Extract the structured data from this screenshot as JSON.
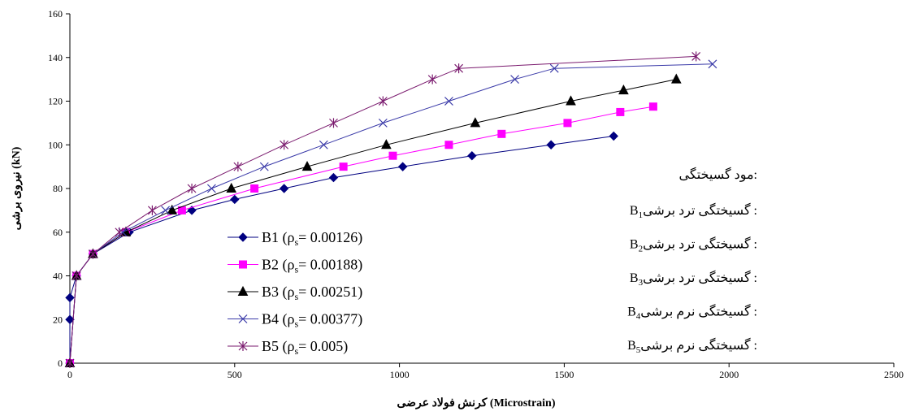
{
  "chart_data": {
    "type": "line",
    "xlabel": "کرنش فولاد عرضی (Microstrain)",
    "ylabel": "نیروی برشی (kN)",
    "xlim": [
      0,
      2500
    ],
    "ylim": [
      0,
      160
    ],
    "xticks": [
      0,
      500,
      1000,
      1500,
      2000,
      2500
    ],
    "yticks": [
      0,
      20,
      40,
      60,
      80,
      100,
      120,
      140,
      160
    ],
    "grid": false,
    "legend_position": "center-left",
    "series": [
      {
        "name": "B1",
        "rho": "0.00126",
        "color": "#000080",
        "marker": "diamond",
        "points": [
          [
            0,
            0
          ],
          [
            0,
            20
          ],
          [
            0,
            30
          ],
          [
            20,
            40
          ],
          [
            70,
            50
          ],
          [
            180,
            60
          ],
          [
            370,
            70
          ],
          [
            500,
            75
          ],
          [
            650,
            80
          ],
          [
            800,
            85
          ],
          [
            1010,
            90
          ],
          [
            1220,
            95
          ],
          [
            1460,
            100
          ],
          [
            1650,
            104
          ]
        ]
      },
      {
        "name": "B2",
        "rho": "0.00188",
        "color": "#ff00ff",
        "marker": "square",
        "points": [
          [
            0,
            0
          ],
          [
            20,
            40
          ],
          [
            70,
            50
          ],
          [
            170,
            60
          ],
          [
            340,
            70
          ],
          [
            560,
            80
          ],
          [
            830,
            90
          ],
          [
            980,
            95
          ],
          [
            1150,
            100
          ],
          [
            1310,
            105
          ],
          [
            1510,
            110
          ],
          [
            1670,
            115
          ],
          [
            1770,
            117.5
          ]
        ]
      },
      {
        "name": "B3",
        "rho": "0.00251",
        "color": "#000000",
        "marker": "triangle",
        "points": [
          [
            0,
            0
          ],
          [
            20,
            40
          ],
          [
            70,
            50
          ],
          [
            170,
            60
          ],
          [
            310,
            70
          ],
          [
            490,
            80
          ],
          [
            720,
            90
          ],
          [
            960,
            100
          ],
          [
            1230,
            110
          ],
          [
            1520,
            120
          ],
          [
            1680,
            125
          ],
          [
            1840,
            130
          ]
        ]
      },
      {
        "name": "B4",
        "rho": "0.00377",
        "color": "#3a3aa8",
        "marker": "x",
        "points": [
          [
            0,
            0
          ],
          [
            20,
            40
          ],
          [
            70,
            50
          ],
          [
            160,
            60
          ],
          [
            290,
            70
          ],
          [
            430,
            80
          ],
          [
            590,
            90
          ],
          [
            770,
            100
          ],
          [
            950,
            110
          ],
          [
            1150,
            120
          ],
          [
            1350,
            130
          ],
          [
            1470,
            135
          ],
          [
            1950,
            137
          ]
        ]
      },
      {
        "name": "B5",
        "rho": "0.005",
        "color": "#7a1a6e",
        "marker": "asterisk",
        "points": [
          [
            0,
            0
          ],
          [
            20,
            40
          ],
          [
            70,
            50
          ],
          [
            150,
            60
          ],
          [
            250,
            70
          ],
          [
            370,
            80
          ],
          [
            510,
            90
          ],
          [
            650,
            100
          ],
          [
            800,
            110
          ],
          [
            950,
            120
          ],
          [
            1100,
            130
          ],
          [
            1180,
            135
          ],
          [
            1900,
            140.5
          ]
        ]
      }
    ]
  },
  "legend": {
    "items": [
      {
        "label": "B1",
        "rho_text": "= 0.00126)"
      },
      {
        "label": "B2",
        "rho_text": "= 0.00188)"
      },
      {
        "label": "B3",
        "rho_text": "= 0.00251)"
      },
      {
        "label": "B4",
        "rho_text": "= 0.00377)"
      },
      {
        "label": "B5",
        "rho_text": "= 0.005)"
      }
    ],
    "rho_prefix": "(ρ",
    "rho_sub": "s"
  },
  "failure": {
    "title": "مود گسیختگی:",
    "items": [
      {
        "beam": "B",
        "sub": "1",
        "mode": ": گسیختگی ترد برشی"
      },
      {
        "beam": "B",
        "sub": "2",
        "mode": ": گسیختگی ترد برشی"
      },
      {
        "beam": "B",
        "sub": "3",
        "mode": ": گسیختگی ترد برشی"
      },
      {
        "beam": "B",
        "sub": "4",
        "mode": ": گسیختگی نرم برشی"
      },
      {
        "beam": "B",
        "sub": "5",
        "mode": ": گسیختگی نرم برشی"
      }
    ]
  }
}
